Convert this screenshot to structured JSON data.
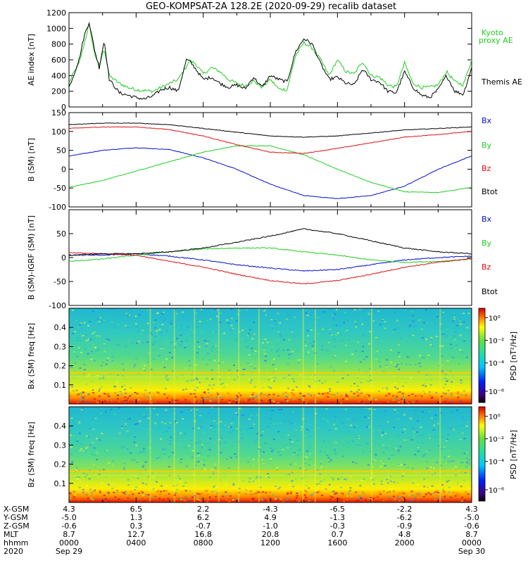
{
  "title": "GEO-KOMPSAT-2A 128.2E (2020-09-29) recalib dataset",
  "colors": {
    "black": "#000000",
    "blue": "#0010cc",
    "green": "#22cc22",
    "red": "#dd1111",
    "kyoto": "#22cc22"
  },
  "chart_data": [
    {
      "type": "line",
      "ylabel": "AE index [nT]",
      "ylim": [
        0,
        1200
      ],
      "yticks": [
        0,
        200,
        400,
        600,
        800,
        1000,
        1200
      ],
      "xlim": [
        0,
        24
      ],
      "legend": [
        "Kyoto proxy AE",
        "Themis AE"
      ],
      "series": [
        {
          "name": "Kyoto proxy AE",
          "color": "#22cc22",
          "x": [
            0,
            0.3,
            0.6,
            0.9,
            1.2,
            1.5,
            1.8,
            2.1,
            2.4,
            3,
            3.5,
            4,
            4.5,
            5,
            5.5,
            6,
            6.5,
            7,
            7.2,
            7.5,
            8,
            8.5,
            9,
            9.5,
            10,
            10.5,
            11,
            11.5,
            12,
            12.5,
            13,
            13.5,
            14,
            14.5,
            15,
            15.5,
            16,
            16.5,
            17,
            17.5,
            18,
            18.5,
            19,
            19.5,
            20,
            20.5,
            21,
            21.5,
            22,
            22.5,
            23,
            23.5,
            24
          ],
          "y": [
            300,
            450,
            550,
            800,
            1050,
            700,
            520,
            750,
            400,
            300,
            250,
            220,
            210,
            200,
            250,
            300,
            350,
            520,
            580,
            560,
            420,
            500,
            450,
            350,
            300,
            270,
            330,
            250,
            350,
            230,
            220,
            650,
            820,
            750,
            600,
            400,
            600,
            450,
            420,
            580,
            400,
            380,
            280,
            250,
            560,
            300,
            250,
            250,
            280,
            450,
            320,
            280,
            600
          ]
        },
        {
          "name": "Themis AE",
          "color": "#000000",
          "x": [
            0,
            0.3,
            0.6,
            0.9,
            1.2,
            1.5,
            1.8,
            2.1,
            2.4,
            3,
            3.5,
            4,
            4.5,
            5,
            5.5,
            6,
            6.5,
            7,
            7.2,
            7.5,
            8,
            8.5,
            9,
            9.5,
            10,
            10.5,
            11,
            11.5,
            12,
            12.5,
            13,
            13.5,
            14,
            14.5,
            15,
            15.5,
            16,
            16.5,
            17,
            17.5,
            18,
            18.5,
            19,
            19.5,
            20,
            20.5,
            21,
            21.5,
            22,
            22.5,
            23,
            23.5,
            24
          ],
          "y": [
            250,
            420,
            600,
            900,
            1080,
            750,
            500,
            850,
            350,
            180,
            150,
            120,
            100,
            140,
            220,
            250,
            200,
            600,
            580,
            500,
            350,
            380,
            300,
            250,
            280,
            230,
            380,
            250,
            400,
            350,
            320,
            700,
            870,
            800,
            550,
            350,
            380,
            300,
            280,
            480,
            350,
            320,
            200,
            180,
            450,
            250,
            150,
            120,
            220,
            400,
            200,
            160,
            500
          ]
        }
      ]
    },
    {
      "type": "line",
      "ylabel": "B (SM) [nT]",
      "ylim": [
        -100,
        150
      ],
      "yticks": [
        -100,
        -50,
        0,
        50,
        100,
        150
      ],
      "xlim": [
        0,
        24
      ],
      "legend": [
        "Bx",
        "By",
        "Bz",
        "Btot"
      ],
      "series": [
        {
          "name": "Bx",
          "color": "#0010cc",
          "x": [
            0,
            2,
            4,
            6,
            8,
            10,
            12,
            14,
            16,
            18,
            20,
            22,
            24
          ],
          "y": [
            35,
            50,
            57,
            52,
            30,
            0,
            -40,
            -70,
            -78,
            -70,
            -45,
            0,
            35
          ]
        },
        {
          "name": "By",
          "color": "#22cc22",
          "x": [
            0,
            2,
            4,
            6,
            8,
            10,
            12,
            14,
            16,
            18,
            20,
            22,
            24
          ],
          "y": [
            -48,
            -30,
            -5,
            20,
            45,
            62,
            62,
            38,
            0,
            -35,
            -60,
            -62,
            -48
          ]
        },
        {
          "name": "Bz",
          "color": "#dd1111",
          "x": [
            0,
            2,
            4,
            6,
            8,
            10,
            12,
            14,
            16,
            18,
            20,
            22,
            24
          ],
          "y": [
            108,
            112,
            112,
            105,
            88,
            65,
            45,
            42,
            55,
            70,
            85,
            92,
            100
          ]
        },
        {
          "name": "Btot",
          "color": "#000000",
          "x": [
            0,
            2,
            4,
            6,
            8,
            10,
            12,
            14,
            16,
            18,
            20,
            22,
            24
          ],
          "y": [
            118,
            122,
            122,
            118,
            108,
            98,
            88,
            85,
            88,
            96,
            104,
            108,
            112
          ]
        }
      ]
    },
    {
      "type": "line",
      "ylabel": "B (SM)-IGRF (SM) [nT]",
      "ylim": [
        -100,
        100
      ],
      "yticks": [
        -100,
        -50,
        0,
        50
      ],
      "xlim": [
        0,
        24
      ],
      "legend": [
        "Bx",
        "By",
        "Bz",
        "Btot"
      ],
      "series": [
        {
          "name": "Bx",
          "color": "#0010cc",
          "x": [
            0,
            2,
            4,
            6,
            8,
            10,
            12,
            14,
            16,
            18,
            20,
            22,
            24
          ],
          "y": [
            5,
            5,
            8,
            3,
            -5,
            -15,
            -22,
            -28,
            -25,
            -15,
            -5,
            0,
            3
          ]
        },
        {
          "name": "By",
          "color": "#22cc22",
          "x": [
            0,
            2,
            4,
            6,
            8,
            10,
            12,
            14,
            16,
            18,
            20,
            22,
            24
          ],
          "y": [
            -8,
            -3,
            5,
            12,
            18,
            20,
            20,
            12,
            5,
            -5,
            -10,
            -8,
            -3
          ]
        },
        {
          "name": "Bz",
          "color": "#dd1111",
          "x": [
            0,
            2,
            4,
            6,
            8,
            10,
            12,
            14,
            16,
            18,
            20,
            22,
            24
          ],
          "y": [
            10,
            8,
            5,
            -8,
            -20,
            -35,
            -48,
            -55,
            -48,
            -35,
            -20,
            -10,
            -2
          ]
        },
        {
          "name": "Btot",
          "color": "#000000",
          "x": [
            0,
            2,
            4,
            6,
            8,
            10,
            12,
            14,
            16,
            18,
            20,
            22,
            24
          ],
          "y": [
            5,
            8,
            8,
            12,
            20,
            32,
            45,
            60,
            50,
            35,
            20,
            12,
            8
          ]
        }
      ]
    },
    {
      "type": "heatmap",
      "ylabel": "Bx (SM) freq [Hz]",
      "ylim": [
        0,
        0.5
      ],
      "yticks": [
        0.1,
        0.2,
        0.3,
        0.4
      ],
      "xlim": [
        0,
        24
      ],
      "colorbar": {
        "label": "PSD [nT²/Hz]",
        "ticks": [
          "10⁰",
          "10⁻²",
          "10⁻⁴",
          "10⁻⁶"
        ]
      }
    },
    {
      "type": "heatmap",
      "ylabel": "Bz (SM) freq [Hz]",
      "ylim": [
        0,
        0.5
      ],
      "yticks": [
        0.1,
        0.2,
        0.3,
        0.4
      ],
      "xlim": [
        0,
        24
      ],
      "colorbar": {
        "label": "PSD [nT²/Hz]",
        "ticks": [
          "10⁰",
          "10⁻²",
          "10⁻⁴",
          "10⁻⁶"
        ]
      }
    }
  ],
  "legend_labels": {
    "kyoto": "Kyoto proxy AE",
    "themis": "Themis AE",
    "bx": "Bx",
    "by": "By",
    "bz": "Bz",
    "btot": "Btot"
  },
  "axis_labels": {
    "ae": "AE index [nT]",
    "b": "B (SM) [nT]",
    "bdiff": "B (SM)-IGRF (SM) [nT]",
    "spec_bx": "Bx (SM) freq [Hz]",
    "spec_bz": "Bz (SM) freq [Hz]",
    "psd": "PSD [nT²/Hz]"
  },
  "ephemeris": {
    "row_labels": [
      "X-GSM",
      "Y-GSM",
      "Z-GSM",
      "MLT",
      "hhmm",
      "2020"
    ],
    "columns": [
      [
        "4.3",
        "-5.0",
        "-0.6",
        "8.7",
        "0000",
        "Sep 29"
      ],
      [
        "6.5",
        "1.3",
        "0.3",
        "12.7",
        "0400",
        ""
      ],
      [
        "2.2",
        "6.2",
        "-0.7",
        "16.8",
        "0800",
        ""
      ],
      [
        "-4.3",
        "4.9",
        "-1.0",
        "20.8",
        "1200",
        ""
      ],
      [
        "-6.5",
        "-1.3",
        "-0.3",
        "0.7",
        "1600",
        ""
      ],
      [
        "-2.2",
        "-6.2",
        "-0.9",
        "4.8",
        "2000",
        ""
      ],
      [
        "4.3",
        "-5.0",
        "-0.6",
        "8.7",
        "0000",
        "Sep 30"
      ]
    ]
  }
}
